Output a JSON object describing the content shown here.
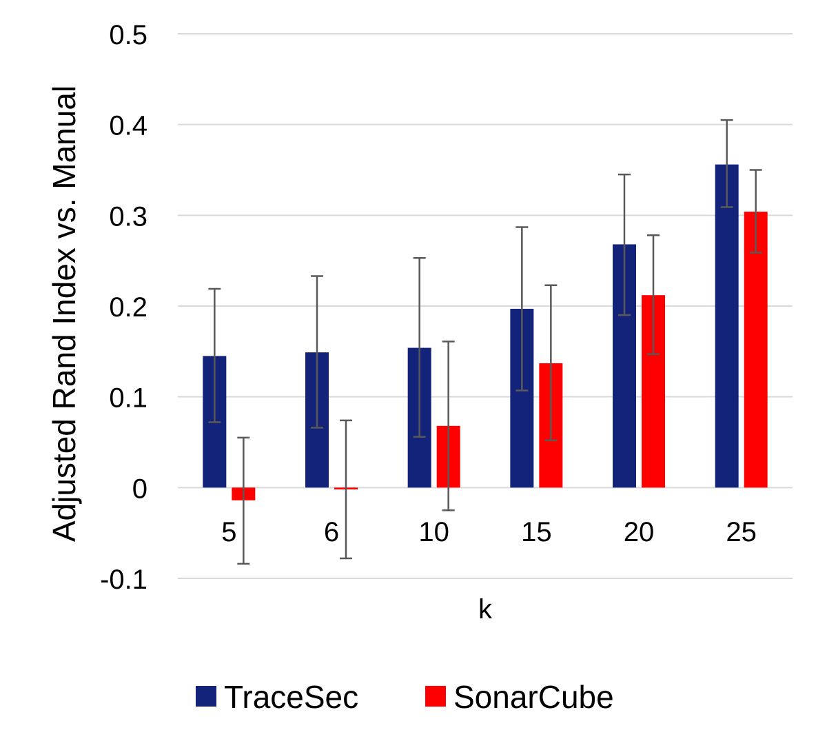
{
  "chart_data": {
    "type": "bar",
    "title": "",
    "xlabel": "k",
    "ylabel": "Adjusted Rand Index vs. Manual",
    "categories": [
      "5",
      "6",
      "10",
      "15",
      "20",
      "25"
    ],
    "ylim": [
      -0.1,
      0.5
    ],
    "yticks": [
      -0.1,
      0,
      0.1,
      0.2,
      0.3,
      0.4,
      0.5
    ],
    "ytick_labels": [
      "-0.1",
      "0",
      "0.1",
      "0.2",
      "0.3",
      "0.4",
      "0.5"
    ],
    "grid": true,
    "legend": "bottom",
    "error_bars": true,
    "series": [
      {
        "name": "TraceSec",
        "color": "#14237a",
        "values": [
          0.145,
          0.149,
          0.154,
          0.197,
          0.268,
          0.356
        ],
        "error_low": [
          0.072,
          0.066,
          0.056,
          0.107,
          0.19,
          0.309
        ],
        "error_high": [
          0.219,
          0.233,
          0.253,
          0.287,
          0.345,
          0.405
        ]
      },
      {
        "name": "SonarCube",
        "color": "#ff0000",
        "values": [
          -0.014,
          -0.002,
          0.068,
          0.137,
          0.212,
          0.304
        ],
        "error_low": [
          -0.084,
          -0.078,
          -0.025,
          0.052,
          0.147,
          0.259
        ],
        "error_high": [
          0.055,
          0.074,
          0.161,
          0.223,
          0.278,
          0.35
        ]
      }
    ],
    "colors": {
      "grid": "#d9d9d9",
      "error_bar": "#595959"
    }
  }
}
